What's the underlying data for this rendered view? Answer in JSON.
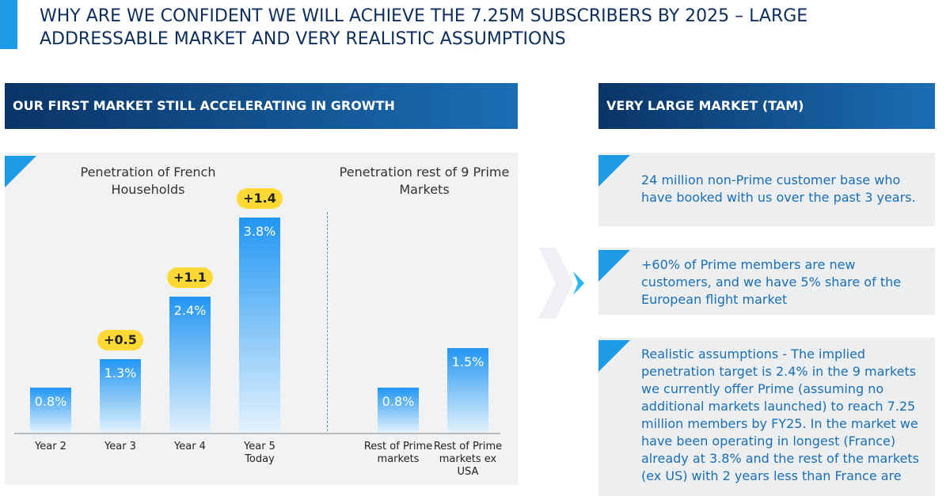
{
  "header": {
    "title": "WHY ARE WE CONFIDENT WE WILL ACHIEVE THE 7.25M SUBSCRIBERS BY 2025 – LARGE ADDRESSABLE MARKET AND VERY REALISTIC ASSUMPTIONS"
  },
  "left_panel": {
    "heading": "OUR FIRST MARKET STILL ACCELERATING IN GROWTH"
  },
  "right_panel": {
    "heading": "VERY LARGE MARKET (TAM)",
    "cards": [
      "24 million non-Prime customer base who have booked with us over the past 3 years.",
      "+60% of Prime members are new customers, and we have 5% share of the European flight market",
      "Realistic assumptions - The implied penetration target is 2.4% in the 9 markets we currently offer Prime (assuming no additional markets launched) to reach 7.25 million members by FY25. In the market we have been operating in longest (France) already at 3.8% and the rest of the markets (ex US) with 2 years less than France are"
    ]
  },
  "chart_data": [
    {
      "type": "bar",
      "title": "Penetration of French Households",
      "categories": [
        "Year 2",
        "Year 3",
        "Year 4",
        "Year 5 Today"
      ],
      "values": [
        0.8,
        1.3,
        2.4,
        3.8
      ],
      "value_labels": [
        "0.8%",
        "1.3%",
        "2.4%",
        "3.8%"
      ],
      "increments": {
        "values": [
          null,
          0.5,
          1.1,
          1.4
        ],
        "value_labels": [
          null,
          "+0.5",
          "+1.1",
          "+1.4"
        ],
        "color": "#fcd934"
      },
      "color": "#2196f3"
    },
    {
      "type": "bar",
      "title": "Penetration rest of 9 Prime Markets",
      "categories": [
        "Rest of Prime markets",
        "Rest of Prime markets ex USA"
      ],
      "values": [
        0.8,
        1.5
      ],
      "value_labels": [
        "0.8%",
        "1.5%"
      ],
      "color": "#2196f3"
    }
  ]
}
